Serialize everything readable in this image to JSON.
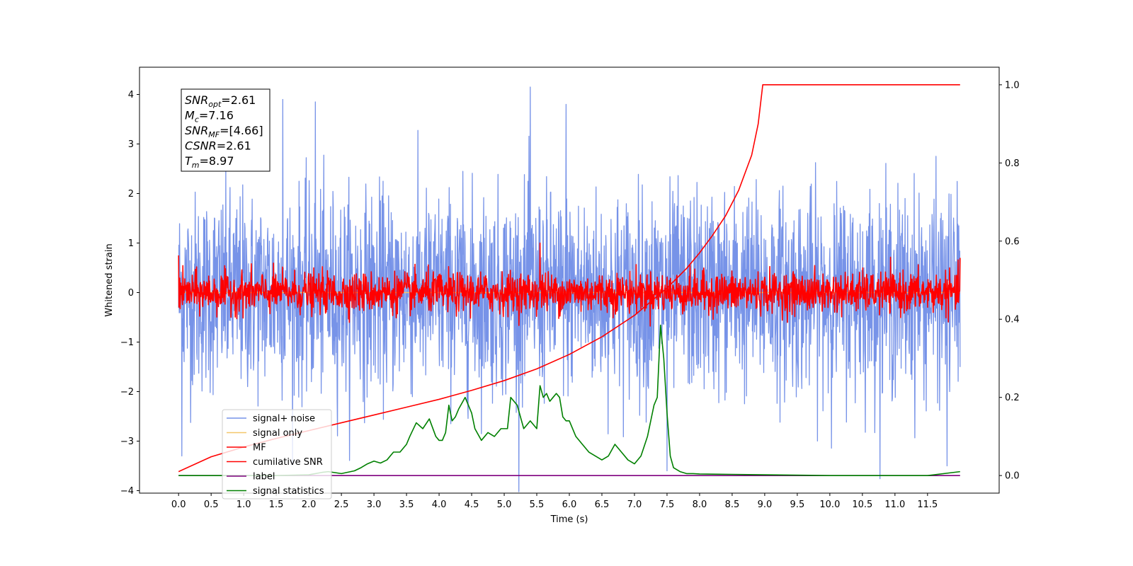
{
  "chart_data": {
    "type": "line",
    "xlabel": "Time (s)",
    "ylabel": "Whitened strain",
    "xlim": [
      -0.6,
      12.6
    ],
    "ylim": [
      -4.05,
      4.55
    ],
    "y2lim": [
      -0.045,
      1.045
    ],
    "x_ticks": [
      "0.0",
      "0.5",
      "1.0",
      "1.5",
      "2.0",
      "2.5",
      "3.0",
      "3.5",
      "4.0",
      "4.5",
      "5.0",
      "5.5",
      "6.0",
      "6.5",
      "7.0",
      "7.5",
      "8.0",
      "8.5",
      "9.0",
      "9.5",
      "10.0",
      "10.5",
      "11.0",
      "11.5"
    ],
    "y_ticks": [
      "4",
      "3",
      "2",
      "1",
      "0",
      "−1",
      "−2",
      "−3",
      "−4"
    ],
    "y2_ticks": [
      "1.0",
      "0.8",
      "0.6",
      "0.4",
      "0.2",
      "0.0"
    ],
    "grid": false,
    "legend_position": "lower-left",
    "info_box": [
      {
        "main": "SNR",
        "sub": "opt",
        "value": "=2.61"
      },
      {
        "main": "M",
        "sub": "c",
        "value": "=7.16"
      },
      {
        "main": "SNR",
        "sub": "MF",
        "value": "=[4.66]"
      },
      {
        "main": "CSNR",
        "sub": "",
        "value": "=2.61"
      },
      {
        "main": "T",
        "sub": "m",
        "value": "=8.97"
      }
    ],
    "series": [
      {
        "name": "signal+ noise",
        "color": "#7793e8",
        "axis": "left",
        "x_range": [
          0.0,
          12.0
        ],
        "std": 1.0,
        "peaks": [
          [
            1.6,
            3.9
          ],
          [
            2.1,
            3.85
          ],
          [
            5.4,
            4.15
          ],
          [
            5.95,
            3.8
          ],
          [
            7.5,
            -3.6
          ],
          [
            11.8,
            -3.5
          ],
          [
            0.05,
            -3.3
          ]
        ]
      },
      {
        "name": "signal only",
        "color": "#f4c76a",
        "axis": "left",
        "x": [
          0.0,
          12.0
        ],
        "y": [
          0.0,
          0.0
        ]
      },
      {
        "name": "MF",
        "color": "#ff0000",
        "axis": "left",
        "x_range": [
          0.0,
          12.0
        ],
        "std": 0.2,
        "peaks": [
          [
            5.55,
            1.0
          ],
          [
            0.0,
            0.75
          ],
          [
            12.0,
            0.7
          ]
        ]
      },
      {
        "name": "cumilative SNR",
        "color": "#ff0000",
        "axis": "right",
        "x": [
          0.0,
          0.5,
          1.0,
          1.5,
          2.0,
          2.5,
          3.0,
          3.5,
          4.0,
          4.5,
          5.0,
          5.5,
          6.0,
          6.5,
          7.0,
          7.5,
          7.8,
          8.0,
          8.2,
          8.4,
          8.6,
          8.8,
          8.9,
          8.97,
          9.0,
          12.0
        ],
        "y": [
          0.01,
          0.048,
          0.073,
          0.095,
          0.115,
          0.135,
          0.155,
          0.175,
          0.195,
          0.218,
          0.243,
          0.273,
          0.31,
          0.355,
          0.41,
          0.48,
          0.53,
          0.57,
          0.615,
          0.665,
          0.73,
          0.82,
          0.9,
          1.0,
          1.0,
          1.0
        ]
      },
      {
        "name": "label",
        "color": "#7f007f",
        "axis": "right",
        "x": [
          0.0,
          12.0
        ],
        "y": [
          0.0,
          0.0
        ]
      },
      {
        "name": "signal statistics",
        "color": "#008000",
        "axis": "right",
        "x": [
          0.0,
          0.5,
          1.0,
          1.5,
          2.0,
          2.2,
          2.3,
          2.5,
          2.7,
          2.8,
          2.9,
          3.0,
          3.1,
          3.2,
          3.3,
          3.4,
          3.5,
          3.55,
          3.65,
          3.75,
          3.85,
          3.95,
          4.0,
          4.05,
          4.1,
          4.15,
          4.2,
          4.25,
          4.3,
          4.4,
          4.5,
          4.55,
          4.65,
          4.75,
          4.85,
          4.95,
          5.05,
          5.1,
          5.2,
          5.3,
          5.4,
          5.5,
          5.55,
          5.6,
          5.65,
          5.7,
          5.75,
          5.8,
          5.85,
          5.9,
          5.95,
          6.0,
          6.1,
          6.2,
          6.3,
          6.4,
          6.5,
          6.6,
          6.7,
          6.8,
          6.9,
          7.0,
          7.1,
          7.2,
          7.3,
          7.35,
          7.4,
          7.45,
          7.5,
          7.55,
          7.6,
          7.7,
          7.8,
          7.9,
          8.0,
          8.5,
          9.0,
          10.0,
          11.0,
          11.5,
          12.0
        ],
        "y": [
          0.0,
          0.0,
          0.0,
          0.0,
          0.002,
          0.008,
          0.01,
          0.005,
          0.012,
          0.02,
          0.03,
          0.037,
          0.032,
          0.04,
          0.06,
          0.06,
          0.08,
          0.1,
          0.135,
          0.12,
          0.145,
          0.1,
          0.09,
          0.09,
          0.11,
          0.18,
          0.14,
          0.15,
          0.17,
          0.2,
          0.16,
          0.12,
          0.09,
          0.11,
          0.1,
          0.12,
          0.12,
          0.2,
          0.18,
          0.12,
          0.14,
          0.12,
          0.23,
          0.2,
          0.21,
          0.19,
          0.2,
          0.21,
          0.2,
          0.15,
          0.14,
          0.14,
          0.1,
          0.08,
          0.06,
          0.05,
          0.04,
          0.05,
          0.08,
          0.06,
          0.04,
          0.03,
          0.05,
          0.1,
          0.18,
          0.2,
          0.385,
          0.3,
          0.16,
          0.05,
          0.02,
          0.01,
          0.005,
          0.005,
          0.004,
          0.003,
          0.002,
          0.0,
          0.0,
          0.0,
          0.01
        ]
      }
    ]
  }
}
